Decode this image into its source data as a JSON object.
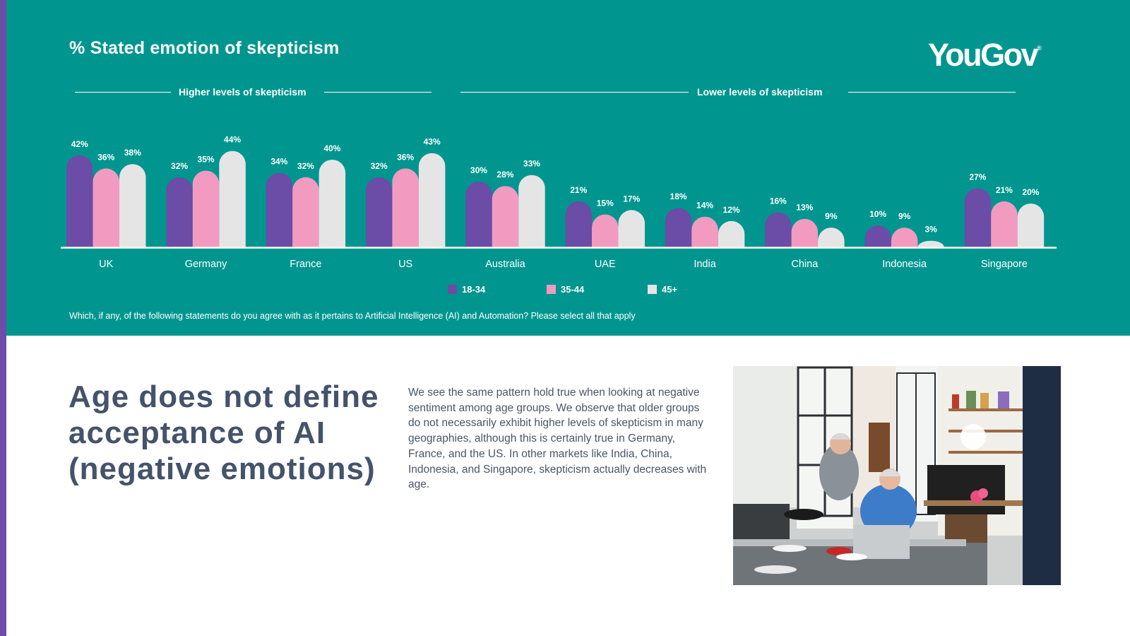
{
  "header": {
    "title": "% Stated emotion of skepticism",
    "logo_text": "YouGov",
    "logo_mark": "®",
    "group_high": "Higher levels of skepticism",
    "group_low": "Lower levels of skepticism",
    "question": "Which, if any, of the following statements do you agree with as it pertains to Artificial Intelligence (AI) and Automation? Please select all that apply"
  },
  "colors": {
    "panel": "#00968F",
    "accent": "#6B4CA6",
    "series_18_34": "#6B4CA6",
    "series_35_44": "#F29AC0",
    "series_45_plus": "#E5E5E5",
    "headline": "#44536B"
  },
  "chart_data": {
    "type": "bar",
    "title": "% Stated emotion of skepticism",
    "categories": [
      "UK",
      "Germany",
      "France",
      "US",
      "Australia",
      "UAE",
      "India",
      "China",
      "Indonesia",
      "Singapore"
    ],
    "series": [
      {
        "name": "18-34",
        "color": "#6B4CA6",
        "values": [
          42,
          32,
          34,
          32,
          30,
          21,
          18,
          16,
          10,
          27
        ]
      },
      {
        "name": "35-44",
        "color": "#F29AC0",
        "values": [
          36,
          35,
          32,
          36,
          28,
          15,
          14,
          13,
          9,
          21
        ]
      },
      {
        "name": "45+",
        "color": "#E5E5E5",
        "values": [
          38,
          44,
          40,
          43,
          33,
          17,
          12,
          9,
          3,
          20
        ]
      }
    ],
    "value_suffix": "%",
    "ylim": [
      0,
      44
    ],
    "legend_position": "bottom",
    "grid": false
  },
  "content": {
    "headline": "Age does not define acceptance of AI (negative emotions)",
    "body": "We see the same pattern hold true when looking at negative sentiment among age groups. We observe that older groups do not necessarily exhibit higher levels of skepticism in many geographies, although this is certainly true in Germany, France, and the US. In other markets like India, China, Indonesia, and Singapore, skepticism actually decreases with age."
  }
}
